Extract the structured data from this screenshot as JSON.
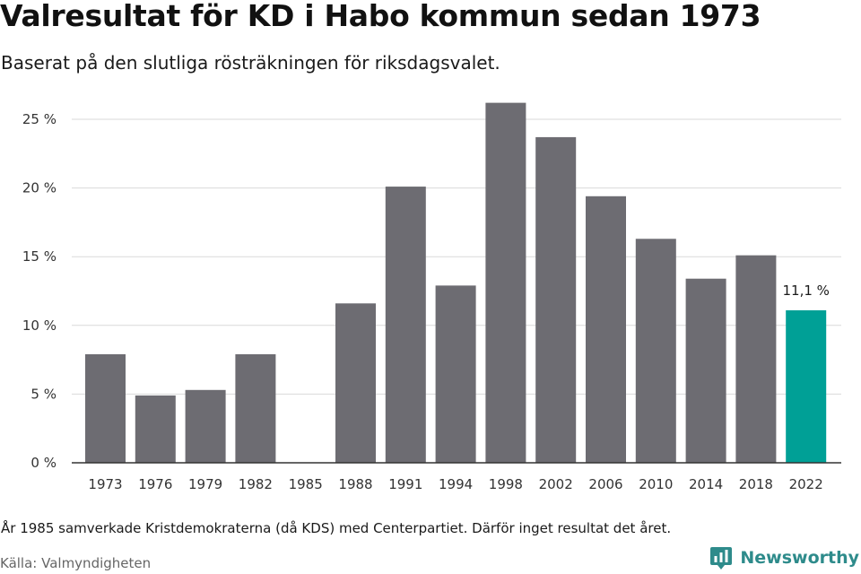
{
  "header": {
    "title": "Valresultat för KD i Habo kommun sedan 1973",
    "subtitle": "Baserat på den slutliga rösträkningen för riksdagsvalet."
  },
  "footer": {
    "note": "År 1985 samverkade Kristdemokraterna (då KDS) med Centerpartiet. Därför inget resultat det året.",
    "source": "Källa: Valmyndigheten",
    "brand": "Newsworthy"
  },
  "colors": {
    "bar": "#6d6c72",
    "highlight": "#00a096",
    "grid": "#d9d9d9",
    "axis": "#333333",
    "brand": "#2e8b8b"
  },
  "icons": {
    "brand_logo": "newsworthy-logo-icon"
  },
  "chart_data": {
    "type": "bar",
    "title": "Valresultat för KD i Habo kommun sedan 1973",
    "subtitle": "Baserat på den slutliga rösträkningen för riksdagsvalet.",
    "xlabel": "",
    "ylabel": "",
    "categories": [
      "1973",
      "1976",
      "1979",
      "1982",
      "1985",
      "1988",
      "1991",
      "1994",
      "1998",
      "2002",
      "2006",
      "2010",
      "2014",
      "2018",
      "2022"
    ],
    "values": [
      7.9,
      4.9,
      5.3,
      7.9,
      null,
      11.6,
      20.1,
      12.9,
      26.2,
      23.7,
      19.4,
      16.3,
      13.4,
      15.1,
      11.1
    ],
    "highlight_index": 14,
    "data_labels": [
      {
        "category": "2022",
        "text": "11,1 %"
      }
    ],
    "yticks": [
      0,
      5,
      10,
      15,
      20,
      25
    ],
    "ytick_labels": [
      "0 %",
      "5 %",
      "10 %",
      "15 %",
      "20 %",
      "25 %"
    ],
    "ylim": [
      0,
      25
    ],
    "grid": true,
    "legend": "none"
  }
}
